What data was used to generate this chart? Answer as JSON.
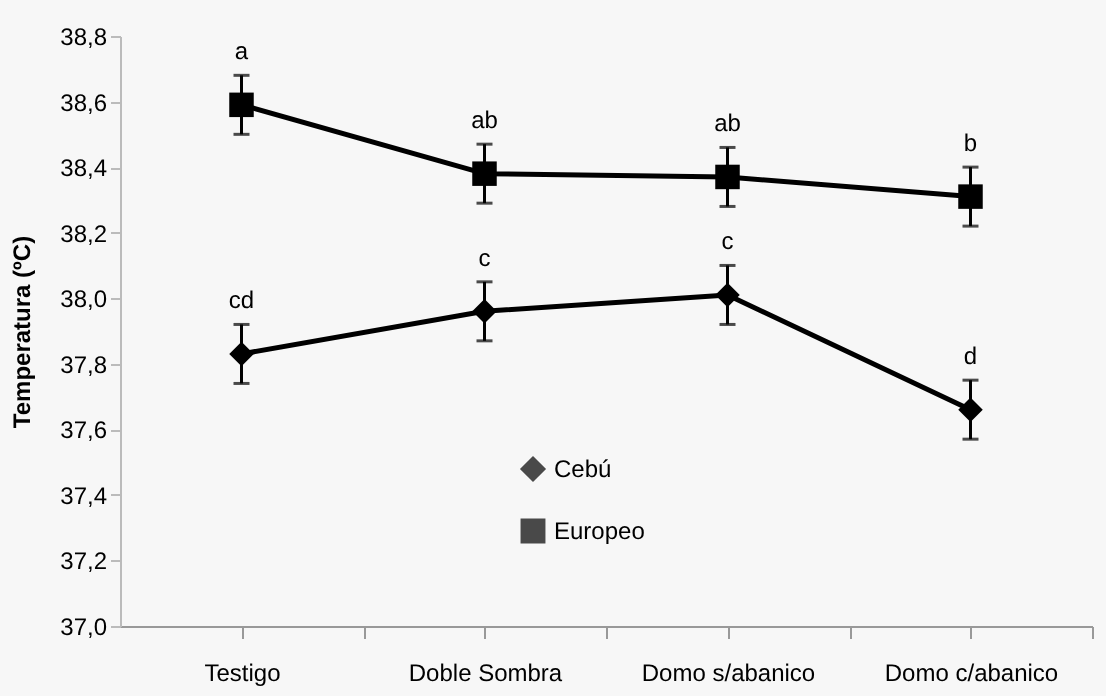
{
  "chart_data": {
    "type": "line",
    "ylabel": "Temperatura (ºC)",
    "categories": [
      "Testigo",
      "Doble Sombra",
      "Domo s/abanico",
      "Domo c/abanico"
    ],
    "series": [
      {
        "name": "Cebú",
        "color": "#000000",
        "marker": "diamond",
        "values": [
          37.83,
          37.96,
          38.01,
          37.66
        ],
        "errors": [
          0.09,
          0.09,
          0.09,
          0.09
        ]
      },
      {
        "name": "Europeo",
        "color": "#000000",
        "marker": "square",
        "values": [
          38.59,
          38.38,
          38.37,
          38.31
        ],
        "errors": [
          0.09,
          0.09,
          0.09,
          0.09
        ]
      }
    ],
    "ylim": [
      37.0,
      38.8
    ],
    "yticks": [
      {
        "value": 37.0,
        "label": "37,0"
      },
      {
        "value": 37.2,
        "label": "37,2"
      },
      {
        "value": 37.4,
        "label": "37,4"
      },
      {
        "value": 37.6,
        "label": "37,6"
      },
      {
        "value": 37.8,
        "label": "37,8"
      },
      {
        "value": 38.0,
        "label": "38,0"
      },
      {
        "value": 38.2,
        "label": "38,2"
      },
      {
        "value": 38.4,
        "label": "38,4"
      },
      {
        "value": 38.6,
        "label": "38,6"
      },
      {
        "value": 38.8,
        "label": "38,8"
      }
    ],
    "annotations": [
      {
        "text": "cd",
        "x": "Testigo",
        "y": 37.92
      },
      {
        "text": "c",
        "x": "Doble Sombra",
        "y": 38.05
      },
      {
        "text": "c",
        "x": "Domo s/abanico",
        "y": 38.1
      },
      {
        "text": "d",
        "x": "Domo c/abanico",
        "y": 37.75
      },
      {
        "text": "a",
        "x": "Testigo",
        "y": 38.68
      },
      {
        "text": "ab",
        "x": "Doble Sombra",
        "y": 38.47
      },
      {
        "text": "ab",
        "x": "Domo s/abanico",
        "y": 38.46
      },
      {
        "text": "b",
        "x": "Domo c/abanico",
        "y": 38.4
      }
    ],
    "grid": false,
    "legend": "bottom",
    "line_style": "solid"
  }
}
